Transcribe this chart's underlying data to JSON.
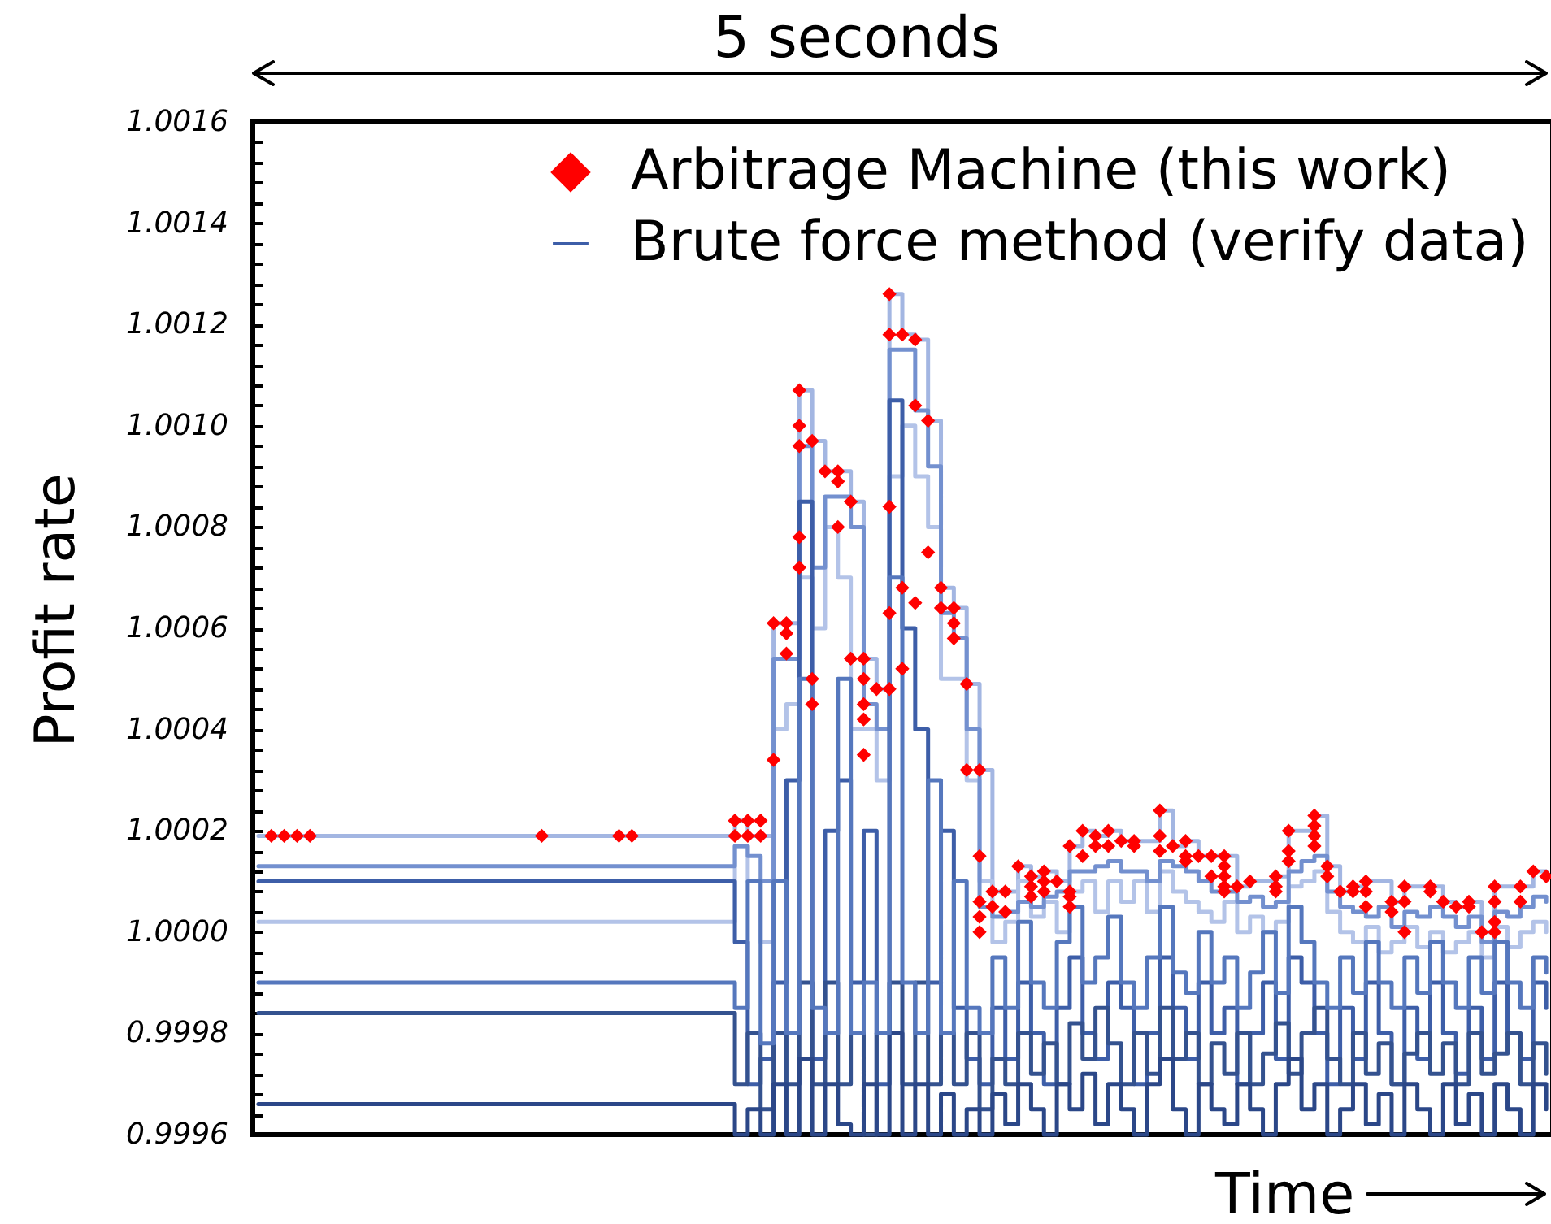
{
  "chart_data": {
    "type": "scatter",
    "annotations": [
      "5 seconds"
    ],
    "xlabel": "Time",
    "ylabel": "Profit rate",
    "legend": "top right",
    "ylim": [
      0.9996,
      1.0016
    ],
    "yticks": [
      0.9996,
      {
        "value": 0.99964,
        "label": null
      },
      {
        "value": 0.99968,
        "label": null
      },
      {
        "value": 0.99972,
        "label": null
      },
      {
        "value": 0.99976,
        "label": null
      },
      0.9998,
      {
        "value": 0.99984,
        "label": null
      },
      {
        "value": 0.99988,
        "label": null
      },
      {
        "value": 0.99992,
        "label": null
      },
      {
        "value": 0.99996,
        "label": null
      },
      {
        "value": 1,
        "label": "1.0000"
      },
      {
        "value": 1.00004,
        "label": null
      },
      {
        "value": 1.00008,
        "label": null
      },
      {
        "value": 1.00012,
        "label": null
      },
      {
        "value": 1.00016,
        "label": null
      },
      1.0002,
      {
        "value": 1.00024,
        "label": null
      },
      {
        "value": 1.00028,
        "label": null
      },
      {
        "value": 1.00032,
        "label": null
      },
      {
        "value": 1.00036,
        "label": null
      },
      1.0004,
      {
        "value": 1.00044,
        "label": null
      },
      {
        "value": 1.00048,
        "label": null
      },
      {
        "value": 1.00052,
        "label": null
      },
      {
        "value": 1.00056,
        "label": null
      },
      1.0006,
      {
        "value": 1.00064,
        "label": null
      },
      {
        "value": 1.00068,
        "label": null
      },
      {
        "value": 1.00072,
        "label": null
      },
      {
        "value": 1.00076,
        "label": null
      },
      1.0008,
      {
        "value": 1.00084,
        "label": null
      },
      {
        "value": 1.00088,
        "label": null
      },
      {
        "value": 1.00092,
        "label": null
      },
      {
        "value": 1.00096,
        "label": null
      },
      {
        "value": 1.001,
        "label": "1.0010"
      },
      {
        "value": 1.00104,
        "label": null
      },
      {
        "value": 1.00108,
        "label": null
      },
      {
        "value": 1.00112,
        "label": null
      },
      {
        "value": 1.00116,
        "label": null
      },
      1.0012,
      {
        "value": 1.00124,
        "label": null
      },
      {
        "value": 1.00128,
        "label": null
      },
      {
        "value": 1.00132,
        "label": null
      },
      {
        "value": 1.00136,
        "label": null
      },
      1.0014,
      {
        "value": 1.00144,
        "label": null
      },
      {
        "value": 1.00148,
        "label": null
      },
      {
        "value": 1.00152,
        "label": null
      },
      {
        "value": 1.00156,
        "label": null
      },
      1.0016
    ],
    "categories": [
      null,
      null,
      null,
      null,
      null,
      null,
      null,
      null,
      null,
      null,
      null,
      null,
      null,
      null,
      null,
      null,
      null,
      null,
      null,
      null,
      null,
      null,
      null,
      null,
      null,
      null,
      null,
      null,
      null,
      null,
      null,
      null,
      null,
      null,
      null,
      null,
      null,
      null,
      null,
      null,
      null,
      null,
      null,
      null,
      null,
      null,
      null,
      null,
      null,
      null,
      null,
      null,
      null,
      null,
      null,
      null,
      null,
      null,
      null,
      null,
      null,
      null,
      null,
      null,
      null,
      null,
      null,
      null,
      null,
      null,
      null,
      null,
      null,
      null,
      null,
      null,
      null,
      null,
      null,
      null,
      null,
      null,
      null,
      null,
      null,
      null,
      null,
      null,
      null,
      null,
      null,
      null,
      null,
      null,
      null,
      null,
      null,
      null,
      null,
      null,
      null
    ],
    "series": [
      {
        "name": "Arbitrage Machine (this work)",
        "marker": "diamond",
        "color": "#ff0000",
        "values": [
          null,
          1.00019,
          1.00019,
          1.00019,
          1.00019,
          null,
          null,
          null,
          null,
          null,
          null,
          null,
          null,
          null,
          null,
          null,
          null,
          null,
          null,
          null,
          null,
          null,
          1.00019,
          null,
          null,
          null,
          null,
          null,
          1.00019,
          1.00019,
          null,
          null,
          null,
          null,
          null,
          null,
          null,
          1.00022,
          1.00022,
          1.00022,
          1.00061,
          1.00061,
          1.00107,
          1.00097,
          1.00091,
          1.00091,
          1.00085,
          1.00054,
          1.00048,
          1.00126,
          1.00118,
          1.00117,
          1.00101,
          1.00068,
          1.00064,
          1.00049,
          1.00032,
          1.00008,
          1.00008,
          1.00013,
          1.00011,
          1.00012,
          1.0001,
          1.00017,
          1.0002,
          1.00019,
          1.0002,
          1.00018,
          1.00018,
          null,
          1.00024,
          1.00017,
          1.00018,
          1.00015,
          1.00015,
          1.00015,
          1.00009,
          1.0001,
          null,
          1.00011,
          1.0002,
          null,
          1.00023,
          1.00013,
          1.00008,
          1.00009,
          1.0001,
          null,
          1.00006,
          1.00009,
          null,
          1.00009,
          1.00006,
          1.00005,
          1.00006,
          1,
          1.00009,
          null,
          1.00009,
          1.00012,
          1.00011
        ]
      },
      {
        "type": "step",
        "color": "#a3b6e2",
        "values": [
          1.00019,
          1.00019,
          1.00019,
          1.00019,
          1.00019,
          1.00019,
          1.00019,
          1.00019,
          1.00019,
          1.00019,
          1.00019,
          1.00019,
          1.00019,
          1.00019,
          1.00019,
          1.00019,
          1.00019,
          1.00019,
          1.00019,
          1.00019,
          1.00019,
          1.00019,
          1.00019,
          1.00019,
          1.00019,
          1.00019,
          1.00019,
          1.00019,
          1.00019,
          1.00019,
          1.00019,
          1.00019,
          1.00019,
          1.00019,
          1.00019,
          1.00019,
          1.00019,
          1.00022,
          1.00019,
          1.00019,
          1.00061,
          1.00061,
          1.00107,
          1.00097,
          1.00091,
          1.00091,
          1.00085,
          1.00054,
          1.00048,
          1.00126,
          1.00118,
          1.00117,
          1.00101,
          1.00068,
          1.00064,
          1.00049,
          1.00032,
          1.00008,
          1.00008,
          1.00013,
          1.00011,
          1.00012,
          1.0001,
          1.00017,
          1.0002,
          1.00019,
          1.0002,
          1.00018,
          1.00018,
          1.00018,
          1.00024,
          1.00017,
          1.00018,
          1.00015,
          1.00015,
          1.00015,
          1.00009,
          1.0001,
          1.0001,
          1.00011,
          1.0002,
          1.0002,
          1.00023,
          1.00013,
          1.00008,
          1.00009,
          1.0001,
          1.0001,
          1.00006,
          1.00009,
          1.00009,
          1.00009,
          1.00006,
          1.00005,
          1.00006,
          1,
          1.00009,
          1.00009,
          1.00009,
          1.00012,
          1.00011
        ]
      },
      {
        "type": "step",
        "color": "#b3c3e8",
        "values": [
          1.00002,
          1.00002,
          1.00002,
          1.00002,
          1.00002,
          1.00002,
          1.00002,
          1.00002,
          1.00002,
          1.00002,
          1.00002,
          1.00002,
          1.00002,
          1.00002,
          1.00002,
          1.00002,
          1.00002,
          1.00002,
          1.00002,
          1.00002,
          1.00002,
          1.00002,
          1.00002,
          1.00002,
          1.00002,
          1.00002,
          1.00002,
          1.00002,
          1.00002,
          1.00002,
          1.00002,
          1.00002,
          1.00002,
          1.00002,
          1.00002,
          1.00002,
          1.00002,
          1.00017,
          1.0001,
          0.99998,
          1.0004,
          1.00045,
          1.0007,
          1.0006,
          1.0008,
          1.0007,
          1.0004,
          1.0004,
          1.0003,
          1.0009,
          1.001,
          1.0009,
          1.0008,
          1.0005,
          1.0005,
          1.0003,
          1.0001,
          0.99998,
          1.00002,
          1.0001,
          1.00003,
          1.00006,
          1,
          1.00008,
          1.0001,
          1.00004,
          1.0001,
          1.00006,
          1.0001,
          1.00004,
          1.00012,
          1.00008,
          1.00006,
          1.00004,
          1.00002,
          1.00006,
          1,
          1.00003,
          1,
          1.00002,
          1.00009,
          1.0001,
          1.00012,
          1.00004,
          1,
          0.99998,
          1.00001,
          0.99996,
          0.99998,
          1.00001,
          0.99997,
          1,
          0.99996,
          0.99998,
          1,
          0.99995,
          1.00001,
          0.99997,
          1,
          1.00002,
          1
        ]
      },
      {
        "type": "step",
        "color": "#7390cf",
        "values": [
          1.00013,
          1.00013,
          1.00013,
          1.00013,
          1.00013,
          1.00013,
          1.00013,
          1.00013,
          1.00013,
          1.00013,
          1.00013,
          1.00013,
          1.00013,
          1.00013,
          1.00013,
          1.00013,
          1.00013,
          1.00013,
          1.00013,
          1.00013,
          1.00013,
          1.00013,
          1.00013,
          1.00013,
          1.00013,
          1.00013,
          1.00013,
          1.00013,
          1.00013,
          1.00013,
          1.00013,
          1.00013,
          1.00013,
          1.00013,
          1.00013,
          1.00013,
          1.00013,
          1.00017,
          1.00015,
          1.0001,
          1.00054,
          1.00054,
          1.00096,
          1.00072,
          1.00086,
          1.00086,
          1.0008,
          1.00045,
          1.0004,
          1.00115,
          1.00115,
          1.00103,
          1.00092,
          1.00063,
          1.00058,
          1.0004,
          1.00005,
          1.00003,
          1.00004,
          1.00006,
          1.00005,
          1.00007,
          1.00008,
          1.00012,
          1.00012,
          1.00013,
          1.00014,
          1.00012,
          1.00012,
          1.0001,
          1.00014,
          1.00013,
          1.00012,
          1.0001,
          1.00008,
          1.00008,
          1.00006,
          1.00007,
          1.00005,
          1.00006,
          1.00012,
          1.00014,
          1.00015,
          1.00008,
          1.00005,
          1.00004,
          1.00003,
          1.00005,
          1.00001,
          1.00004,
          1.00003,
          1.00005,
          1.00003,
          1.00001,
          1.00003,
          0.99998,
          1.00004,
          1.00003,
          1.00005,
          1.00007,
          1.00006
        ]
      },
      {
        "name": "Brute force method (verify data)",
        "type": "step",
        "color": "#3d5ea8",
        "values": [
          1.0001,
          1.0001,
          1.0001,
          1.0001,
          1.0001,
          1.0001,
          1.0001,
          1.0001,
          1.0001,
          1.0001,
          1.0001,
          1.0001,
          1.0001,
          1.0001,
          1.0001,
          1.0001,
          1.0001,
          1.0001,
          1.0001,
          1.0001,
          1.0001,
          1.0001,
          1.0001,
          1.0001,
          1.0001,
          1.0001,
          1.0001,
          1.0001,
          1.0001,
          1.0001,
          1.0001,
          1.0001,
          1.0001,
          1.0001,
          1.0001,
          1.0001,
          1.0001,
          0.99998,
          0.9997,
          0.99975,
          0.9999,
          1.0003,
          1.00085,
          0.99975,
          1.0002,
          1.0003,
          0.9999,
          1.0002,
          0.9997,
          1.00105,
          1.0006,
          1.0004,
          0.9999,
          1.0002,
          0.99985,
          0.99975,
          0.9997,
          0.99985,
          0.99975,
          0.9999,
          0.9998,
          0.9997,
          0.99985,
          0.99995,
          0.9998,
          0.99975,
          0.9999,
          0.99985,
          0.9997,
          0.9998,
          0.99995,
          0.99985,
          0.99975,
          0.9999,
          0.9998,
          0.99985,
          0.9997,
          0.9998,
          0.9999,
          0.99975,
          0.99995,
          0.9999,
          0.9998,
          0.9997,
          0.99985,
          0.99975,
          0.9999,
          0.9998,
          0.9997,
          0.99985,
          0.99975,
          0.9999,
          0.9998,
          0.99972,
          0.99985,
          0.99975,
          0.9999,
          0.9998,
          0.99975,
          0.9999,
          0.99985
        ]
      },
      {
        "type": "step",
        "color": "#34528f",
        "values": [
          0.99984,
          0.99984,
          0.99984,
          0.99984,
          0.99984,
          0.99984,
          0.99984,
          0.99984,
          0.99984,
          0.99984,
          0.99984,
          0.99984,
          0.99984,
          0.99984,
          0.99984,
          0.99984,
          0.99984,
          0.99984,
          0.99984,
          0.99984,
          0.99984,
          0.99984,
          0.99984,
          0.99984,
          0.99984,
          0.99984,
          0.99984,
          0.99984,
          0.99984,
          0.99984,
          0.99984,
          0.99984,
          0.99984,
          0.99984,
          0.99984,
          0.99984,
          0.99984,
          0.9997,
          0.9998,
          0.99965,
          0.9998,
          0.9997,
          0.9999,
          0.9997,
          0.9999,
          0.9997,
          0.9998,
          0.9996,
          0.9998,
          0.9999,
          0.9997,
          0.9999,
          0.9997,
          0.9998,
          0.9997,
          0.9998,
          0.99965,
          0.99975,
          0.9997,
          0.9998,
          0.99972,
          0.99978,
          0.9997,
          0.99982,
          0.99975,
          0.99985,
          0.99978,
          0.9997,
          0.9998,
          0.99972,
          0.99985,
          0.99975,
          0.9998,
          0.9997,
          0.99978,
          0.99972,
          0.9998,
          0.9997,
          0.99976,
          0.99982,
          0.99972,
          0.9998,
          0.99985,
          0.99975,
          0.9997,
          0.9998,
          0.99972,
          0.99978,
          0.9997,
          0.99976,
          0.9998,
          0.99972,
          0.99978,
          0.9997,
          0.9998,
          0.99972,
          0.99976,
          0.9998,
          0.9997,
          0.99978,
          0.99972
        ]
      },
      {
        "type": "step",
        "color": "#2b4788",
        "values": [
          0.99966,
          0.99966,
          0.99966,
          0.99966,
          0.99966,
          0.99966,
          0.99966,
          0.99966,
          0.99966,
          0.99966,
          0.99966,
          0.99966,
          0.99966,
          0.99966,
          0.99966,
          0.99966,
          0.99966,
          0.99966,
          0.99966,
          0.99966,
          0.99966,
          0.99966,
          0.99966,
          0.99966,
          0.99966,
          0.99966,
          0.99966,
          0.99966,
          0.99966,
          0.99966,
          0.99966,
          0.99966,
          0.99966,
          0.99966,
          0.99966,
          0.99966,
          0.99966,
          0.9996,
          0.99965,
          0.9996,
          0.9997,
          0.9996,
          0.99975,
          0.9996,
          0.9997,
          0.99962,
          0.9996,
          0.9997,
          0.9996,
          0.9998,
          0.9996,
          0.9997,
          0.9996,
          0.99968,
          0.9996,
          0.99965,
          0.9996,
          0.99968,
          0.99962,
          0.9997,
          0.99965,
          0.9996,
          0.9997,
          0.99965,
          0.99972,
          0.99962,
          0.9997,
          0.99965,
          0.9996,
          0.9997,
          0.99975,
          0.99965,
          0.9996,
          0.9997,
          0.99965,
          0.99962,
          0.9997,
          0.99965,
          0.9996,
          0.9997,
          0.99975,
          0.99965,
          0.9997,
          0.9996,
          0.99965,
          0.9997,
          0.99962,
          0.99968,
          0.9996,
          0.9997,
          0.99965,
          0.9996,
          0.9997,
          0.99962,
          0.99968,
          0.9996,
          0.9997,
          0.99965,
          0.9996,
          0.9997,
          0.99965
        ]
      },
      {
        "type": "step",
        "color": "#5577bd",
        "values": [
          0.9999,
          0.9999,
          0.9999,
          0.9999,
          0.9999,
          0.9999,
          0.9999,
          0.9999,
          0.9999,
          0.9999,
          0.9999,
          0.9999,
          0.9999,
          0.9999,
          0.9999,
          0.9999,
          0.9999,
          0.9999,
          0.9999,
          0.9999,
          0.9999,
          0.9999,
          0.9999,
          0.9999,
          0.9999,
          0.9999,
          0.9999,
          0.9999,
          0.9999,
          0.9999,
          0.9999,
          0.9999,
          0.9999,
          0.9999,
          0.9999,
          0.9999,
          0.9999,
          0.99985,
          1.0001,
          0.99978,
          1.0001,
          0.9998,
          1.0005,
          0.99985,
          0.9998,
          1.0005,
          0.9998,
          0.9999,
          0.9998,
          1.0007,
          0.9999,
          0.9998,
          1.0003,
          0.9998,
          1.0001,
          0.99985,
          0.9998,
          0.99995,
          0.99985,
          1.00002,
          0.9999,
          0.99985,
          0.99998,
          1.00005,
          0.9999,
          0.99995,
          1.00003,
          0.9999,
          0.99985,
          0.99995,
          1.00005,
          0.99992,
          0.99988,
          1,
          0.9999,
          0.99995,
          0.99985,
          0.99992,
          1,
          0.99988,
          1.00005,
          0.99998,
          0.9999,
          0.99985,
          0.99995,
          0.99988,
          0.99998,
          0.9999,
          0.99985,
          0.99995,
          0.99988,
          0.99998,
          0.9999,
          0.99985,
          0.99995,
          0.99988,
          0.99998,
          0.9999,
          0.99985,
          0.99995,
          0.99992
        ]
      },
      {
        "marker": "diamond",
        "color": "#ff0000",
        "values": [
          null,
          null,
          null,
          null,
          null,
          null,
          null,
          null,
          null,
          null,
          null,
          null,
          null,
          null,
          null,
          null,
          null,
          null,
          null,
          null,
          null,
          null,
          null,
          null,
          null,
          null,
          null,
          null,
          null,
          null,
          null,
          null,
          null,
          null,
          null,
          null,
          null,
          1.00019,
          1.00019,
          1.00019,
          1.00034,
          1.00059,
          1.001,
          1.0005,
          null,
          1.00089,
          1.00054,
          1.0005,
          null,
          1.00118,
          1.00068,
          1.00104,
          1.00075,
          1.00064,
          1.00061,
          1.00032,
          1.00015,
          1.00005,
          1.00004,
          null,
          1.00009,
          1.0001,
          null,
          1.00008,
          1.00015,
          1.00017,
          1.00017,
          null,
          1.00017,
          null,
          1.00019,
          null,
          1.00015,
          null,
          1.00011,
          1.00013,
          null,
          null,
          null,
          1.00009,
          1.00016,
          null,
          1.00021,
          1.00011,
          null,
          1.00008,
          1.00008,
          null,
          1.00004,
          1.00006,
          null,
          1.00008,
          null,
          null,
          1.00005,
          null,
          1.00006,
          null,
          1.00006,
          null,
          null
        ]
      },
      {
        "marker": "diamond",
        "color": "#ff0000",
        "values": [
          null,
          null,
          null,
          null,
          null,
          null,
          null,
          null,
          null,
          null,
          null,
          null,
          null,
          null,
          null,
          null,
          null,
          null,
          null,
          null,
          null,
          null,
          null,
          null,
          null,
          null,
          null,
          null,
          null,
          null,
          null,
          null,
          null,
          null,
          null,
          null,
          null,
          null,
          null,
          null,
          null,
          1.00055,
          1.00096,
          1.00045,
          null,
          1.0008,
          null,
          1.00045,
          null,
          1.00084,
          1.00052,
          1.00065,
          null,
          null,
          1.00058,
          null,
          1.00006,
          null,
          null,
          null,
          1.00007,
          1.00008,
          null,
          1.00007,
          null,
          null,
          null,
          null,
          null,
          null,
          1.00016,
          null,
          1.00014,
          null,
          null,
          1.00011,
          null,
          null,
          null,
          1.00008,
          1.00014,
          null,
          1.00019,
          null,
          null,
          null,
          1.00005,
          null,
          null,
          1,
          null,
          null,
          null,
          null,
          null,
          null,
          1.00002,
          null,
          null,
          null,
          null
        ]
      },
      {
        "marker": "diamond",
        "color": "#ff0000",
        "values": [
          null,
          null,
          null,
          null,
          null,
          null,
          null,
          null,
          null,
          null,
          null,
          null,
          null,
          null,
          null,
          null,
          null,
          null,
          null,
          null,
          null,
          null,
          null,
          null,
          null,
          null,
          null,
          null,
          null,
          null,
          null,
          null,
          null,
          null,
          null,
          null,
          null,
          null,
          null,
          null,
          null,
          null,
          1.00078,
          null,
          null,
          null,
          null,
          1.00042,
          null,
          1.00063,
          null,
          null,
          null,
          null,
          null,
          null,
          1.00003,
          null,
          null,
          null,
          null,
          null,
          null,
          1.00005,
          null,
          null,
          null,
          null,
          null,
          null,
          null,
          null,
          null,
          null,
          null,
          1.00009,
          null,
          null,
          null,
          null,
          null,
          null,
          1.00017,
          null,
          null,
          null,
          null,
          null,
          null,
          null,
          null,
          null,
          null,
          null,
          null,
          null,
          1,
          null,
          null,
          null,
          null
        ]
      },
      {
        "marker": "diamond",
        "color": "#ff0000",
        "values": [
          null,
          null,
          null,
          null,
          null,
          null,
          null,
          null,
          null,
          null,
          null,
          null,
          null,
          null,
          null,
          null,
          null,
          null,
          null,
          null,
          null,
          null,
          null,
          null,
          null,
          null,
          null,
          null,
          null,
          null,
          null,
          null,
          null,
          null,
          null,
          null,
          null,
          null,
          null,
          null,
          null,
          null,
          1.00072,
          null,
          null,
          null,
          null,
          1.00035,
          null,
          1.00048,
          null,
          null,
          null,
          null,
          null,
          null,
          1,
          null,
          null,
          null,
          null,
          null,
          null,
          null,
          null,
          null,
          null,
          null,
          null,
          null,
          null,
          null,
          null,
          null,
          null,
          1.00008,
          null,
          null,
          null,
          null,
          null,
          null,
          null,
          null,
          null,
          null,
          null,
          null,
          null,
          null,
          null,
          null,
          null,
          null,
          null,
          null,
          null,
          null,
          null,
          null,
          null
        ]
      }
    ]
  }
}
